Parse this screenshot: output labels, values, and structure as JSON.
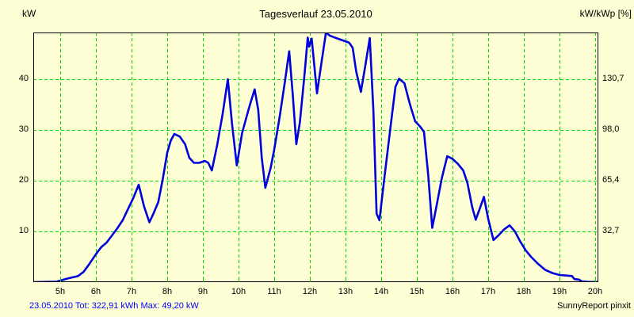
{
  "header": {
    "title": "Tagesverlauf 23.05.2010",
    "left_unit": "kW",
    "right_unit": "kW/kWp [%]"
  },
  "footer": {
    "summary": "23.05.2010 Tot: 322,91 kWh Max: 49,20 kW",
    "brand": "SunnyReport pinxit"
  },
  "colors": {
    "background": "#FFFFD6",
    "grid": "#00DC00",
    "curve": "#0000DC",
    "axis": "#000000",
    "summary_text": "#0000FF",
    "text": "#000000"
  },
  "chart_data": {
    "type": "line",
    "title": "Tagesverlauf 23.05.2010",
    "ylabel_left": "kW",
    "ylabel_right": "kW/kWp [%]",
    "grid": true,
    "xlim": [
      4.244,
      20.089
    ],
    "ylim": [
      0,
      49.2
    ],
    "x_ticks": [
      {
        "label": "5h",
        "hour": 5
      },
      {
        "label": "6h",
        "hour": 6
      },
      {
        "label": "7h",
        "hour": 7
      },
      {
        "label": "8h",
        "hour": 8
      },
      {
        "label": "9h",
        "hour": 9
      },
      {
        "label": "10h",
        "hour": 10
      },
      {
        "label": "11h",
        "hour": 11
      },
      {
        "label": "12h",
        "hour": 12
      },
      {
        "label": "13h",
        "hour": 13
      },
      {
        "label": "14h",
        "hour": 14
      },
      {
        "label": "15h",
        "hour": 15
      },
      {
        "label": "16h",
        "hour": 16
      },
      {
        "label": "17h",
        "hour": 17
      },
      {
        "label": "18h",
        "hour": 18
      },
      {
        "label": "19h",
        "hour": 19
      },
      {
        "label": "20h",
        "hour": 20
      }
    ],
    "y_ticks_left": [
      {
        "label": "10",
        "value": 10
      },
      {
        "label": "20",
        "value": 20
      },
      {
        "label": "30",
        "value": 30
      },
      {
        "label": "40",
        "value": 40
      }
    ],
    "y_ticks_right": [
      {
        "label": "32,7",
        "value": 10
      },
      {
        "label": "65,4",
        "value": 20
      },
      {
        "label": "98,0",
        "value": 30
      },
      {
        "label": "130,7",
        "value": 40
      }
    ],
    "stats": {
      "date": "23.05.2010",
      "total_kwh": "322,91",
      "max_kw": "49,20"
    },
    "series": [
      {
        "name": "power_kw",
        "points": [
          [
            4.25,
            0.0
          ],
          [
            4.9,
            0.1
          ],
          [
            5.0,
            0.3
          ],
          [
            5.2,
            0.7
          ],
          [
            5.35,
            0.95
          ],
          [
            5.5,
            1.2
          ],
          [
            5.65,
            2.0
          ],
          [
            5.8,
            3.4
          ],
          [
            6.0,
            5.5
          ],
          [
            6.15,
            6.9
          ],
          [
            6.3,
            7.8
          ],
          [
            6.45,
            9.2
          ],
          [
            6.6,
            10.6
          ],
          [
            6.75,
            12.2
          ],
          [
            6.9,
            14.4
          ],
          [
            7.05,
            16.6
          ],
          [
            7.2,
            19.2
          ],
          [
            7.35,
            14.9
          ],
          [
            7.5,
            11.8
          ],
          [
            7.62,
            13.6
          ],
          [
            7.75,
            15.8
          ],
          [
            7.88,
            20.5
          ],
          [
            8.0,
            25.5
          ],
          [
            8.1,
            27.9
          ],
          [
            8.2,
            29.2
          ],
          [
            8.35,
            28.7
          ],
          [
            8.5,
            27.2
          ],
          [
            8.62,
            24.5
          ],
          [
            8.75,
            23.5
          ],
          [
            8.9,
            23.5
          ],
          [
            9.05,
            23.9
          ],
          [
            9.15,
            23.5
          ],
          [
            9.25,
            22.0
          ],
          [
            9.4,
            27.0
          ],
          [
            9.55,
            33.0
          ],
          [
            9.7,
            40.0
          ],
          [
            9.82,
            31.0
          ],
          [
            9.95,
            23.0
          ],
          [
            10.1,
            29.4
          ],
          [
            10.3,
            34.5
          ],
          [
            10.45,
            38.0
          ],
          [
            10.55,
            34.0
          ],
          [
            10.65,
            24.5
          ],
          [
            10.75,
            18.6
          ],
          [
            10.9,
            22.5
          ],
          [
            11.0,
            26.1
          ],
          [
            11.15,
            32.5
          ],
          [
            11.3,
            39.5
          ],
          [
            11.42,
            45.5
          ],
          [
            11.52,
            37.0
          ],
          [
            11.62,
            27.2
          ],
          [
            11.72,
            31.5
          ],
          [
            11.85,
            41.0
          ],
          [
            11.94,
            48.2
          ],
          [
            11.98,
            46.4
          ],
          [
            12.05,
            48.0
          ],
          [
            12.2,
            37.2
          ],
          [
            12.32,
            43.0
          ],
          [
            12.45,
            49.2
          ],
          [
            12.55,
            48.6
          ],
          [
            12.7,
            48.2
          ],
          [
            12.9,
            47.7
          ],
          [
            13.1,
            47.2
          ],
          [
            13.2,
            46.2
          ],
          [
            13.3,
            41.5
          ],
          [
            13.43,
            37.5
          ],
          [
            13.55,
            42.5
          ],
          [
            13.68,
            48.1
          ],
          [
            13.78,
            34.0
          ],
          [
            13.87,
            13.5
          ],
          [
            13.95,
            12.2
          ],
          [
            14.08,
            20.0
          ],
          [
            14.25,
            30.0
          ],
          [
            14.4,
            38.5
          ],
          [
            14.5,
            40.1
          ],
          [
            14.65,
            39.2
          ],
          [
            14.8,
            35.2
          ],
          [
            14.95,
            31.7
          ],
          [
            15.1,
            30.6
          ],
          [
            15.2,
            29.6
          ],
          [
            15.32,
            21.0
          ],
          [
            15.43,
            10.7
          ],
          [
            15.55,
            15.0
          ],
          [
            15.7,
            20.5
          ],
          [
            15.85,
            24.8
          ],
          [
            16.0,
            24.3
          ],
          [
            16.15,
            23.3
          ],
          [
            16.3,
            22.0
          ],
          [
            16.42,
            19.5
          ],
          [
            16.55,
            14.8
          ],
          [
            16.65,
            12.3
          ],
          [
            16.8,
            15.2
          ],
          [
            16.88,
            16.8
          ],
          [
            17.0,
            12.5
          ],
          [
            17.15,
            8.3
          ],
          [
            17.3,
            9.3
          ],
          [
            17.45,
            10.4
          ],
          [
            17.6,
            11.2
          ],
          [
            17.75,
            10.0
          ],
          [
            17.9,
            8.0
          ],
          [
            18.05,
            6.3
          ],
          [
            18.2,
            5.0
          ],
          [
            18.4,
            3.6
          ],
          [
            18.6,
            2.4
          ],
          [
            18.8,
            1.8
          ],
          [
            19.0,
            1.4
          ],
          [
            19.2,
            1.3
          ],
          [
            19.35,
            1.2
          ],
          [
            19.42,
            0.6
          ],
          [
            19.55,
            0.5
          ],
          [
            19.62,
            0.15
          ],
          [
            19.8,
            0.05
          ],
          [
            20.08,
            0.02
          ]
        ]
      }
    ]
  }
}
